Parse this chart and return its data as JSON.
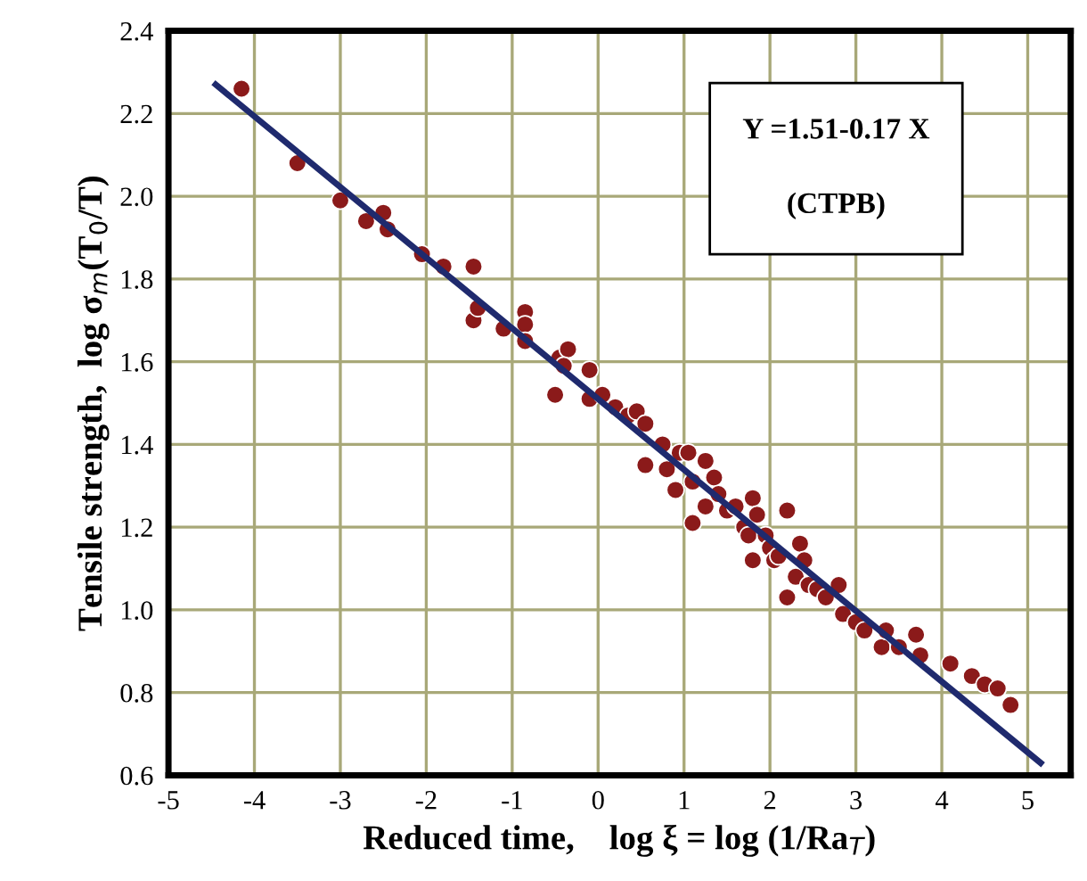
{
  "chart_data": {
    "type": "scatter",
    "xlabel": "Reduced time,    log ξ = log (1/Ra$_{T}$)",
    "ylabel": "Tensile strength,  log σ$_{m}$(T$_{0}$/T)",
    "annotations": [
      "Y =1.51-0.17 X",
      "(CTPB)"
    ],
    "xlim": [
      -5,
      5.5
    ],
    "ylim": [
      0.6,
      2.4
    ],
    "xticks": [
      -5,
      -4,
      -3,
      -2,
      -1,
      0,
      1,
      2,
      3,
      4,
      5
    ],
    "yticks": [
      0.6,
      0.8,
      {
        "value": 1.0,
        "label": "1.0"
      },
      1.2,
      1.4,
      1.6,
      1.8,
      {
        "value": 2.0,
        "label": "2.0"
      },
      2.2,
      2.4
    ],
    "grid": true,
    "marker": "circle",
    "series": [
      {
        "color": "#8b1a1a",
        "x": [
          -4.15,
          -3.5,
          -3.0,
          -2.7,
          -2.5,
          -2.45,
          -2.05,
          -1.8,
          -1.45,
          -1.45,
          -1.4,
          -1.1,
          -0.85,
          -0.85,
          -0.85,
          -0.5,
          -0.45,
          -0.35,
          -0.4,
          -0.1,
          -0.1,
          0.05,
          0.2,
          0.35,
          0.45,
          0.55,
          0.55,
          0.75,
          0.8,
          0.95,
          0.9,
          1.05,
          1.1,
          1.1,
          1.25,
          1.25,
          1.35,
          1.4,
          1.5,
          1.6,
          1.7,
          1.75,
          1.8,
          1.85,
          1.8,
          1.95,
          2.0,
          2.05,
          2.1,
          2.2,
          2.2,
          2.3,
          2.35,
          2.4,
          2.45,
          2.55,
          2.65,
          2.8,
          2.85,
          3.0,
          3.1,
          3.3,
          3.35,
          3.5,
          3.75,
          3.7,
          4.1,
          4.35,
          4.5,
          4.65,
          4.8
        ],
        "values": [
          2.26,
          2.08,
          1.99,
          1.94,
          1.96,
          1.92,
          1.86,
          1.83,
          1.83,
          1.7,
          1.73,
          1.68,
          1.72,
          1.69,
          1.65,
          1.52,
          1.61,
          1.63,
          1.59,
          1.58,
          1.51,
          1.52,
          1.49,
          1.47,
          1.48,
          1.45,
          1.35,
          1.4,
          1.34,
          1.38,
          1.29,
          1.38,
          1.31,
          1.21,
          1.36,
          1.25,
          1.32,
          1.28,
          1.24,
          1.25,
          1.2,
          1.18,
          1.27,
          1.23,
          1.12,
          1.18,
          1.15,
          1.12,
          1.13,
          1.24,
          1.03,
          1.08,
          1.16,
          1.12,
          1.06,
          1.05,
          1.03,
          1.06,
          0.99,
          0.97,
          0.95,
          0.91,
          0.95,
          0.91,
          0.89,
          0.94,
          0.87,
          0.84,
          0.82,
          0.81,
          0.77
        ]
      },
      {
        "type": "line",
        "color": "#1f2a6e",
        "marker": "none",
        "line_style": "solid",
        "x": [
          -4.45,
          5.15
        ],
        "values": [
          2.27,
          0.63
        ]
      }
    ]
  }
}
